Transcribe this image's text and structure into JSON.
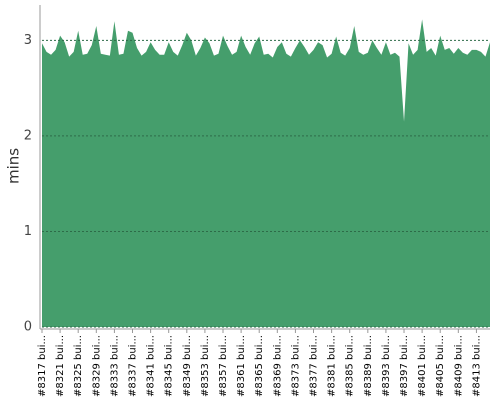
{
  "chart_data": {
    "type": "area",
    "y_label": "mins",
    "color": "#459e6c",
    "ylim": [
      0,
      3.37
    ],
    "yticks": [
      0,
      1,
      2,
      3
    ],
    "grid": true,
    "categories": [
      "#8317 bui...",
      null,
      null,
      null,
      "#8321 bui...",
      null,
      null,
      null,
      "#8325 bui...",
      null,
      null,
      null,
      "#8329 bui...",
      null,
      null,
      null,
      "#8333 bui...",
      null,
      null,
      null,
      "#8337 bui...",
      null,
      null,
      null,
      "#8341 bui...",
      null,
      null,
      null,
      "#8345 bui...",
      null,
      null,
      null,
      "#8349 bui...",
      null,
      null,
      null,
      "#8353 bui...",
      null,
      null,
      null,
      "#8357 bui...",
      null,
      null,
      null,
      "#8361 bui...",
      null,
      null,
      null,
      "#8365 bui...",
      null,
      null,
      null,
      "#8369 bui...",
      null,
      null,
      null,
      "#8373 bui...",
      null,
      null,
      null,
      "#8377 bui...",
      null,
      null,
      null,
      "#8381 bui...",
      null,
      null,
      null,
      "#8385 bui...",
      null,
      null,
      null,
      "#8389 bui...",
      null,
      null,
      null,
      "#8393 bui...",
      null,
      null,
      null,
      "#8397 bui...",
      null,
      null,
      null,
      "#8401 bui...",
      null,
      null,
      null,
      "#8405 bui...",
      null,
      null,
      null,
      "#8409 bui...",
      null,
      null,
      null,
      "#8413 bui...",
      null,
      null,
      null
    ],
    "values": [
      2.97,
      2.88,
      2.85,
      2.9,
      3.05,
      2.98,
      2.83,
      2.88,
      3.1,
      2.85,
      2.86,
      2.95,
      3.15,
      2.86,
      2.85,
      2.84,
      3.2,
      2.85,
      2.86,
      3.1,
      3.08,
      2.92,
      2.84,
      2.88,
      2.98,
      2.9,
      2.85,
      2.85,
      2.98,
      2.88,
      2.84,
      2.95,
      3.08,
      3.0,
      2.84,
      2.92,
      3.03,
      2.97,
      2.84,
      2.86,
      3.05,
      2.94,
      2.85,
      2.88,
      3.05,
      2.93,
      2.85,
      2.97,
      3.04,
      2.85,
      2.86,
      2.82,
      2.93,
      2.98,
      2.86,
      2.83,
      2.92,
      3.0,
      2.93,
      2.85,
      2.9,
      2.98,
      2.95,
      2.82,
      2.86,
      3.04,
      2.87,
      2.84,
      2.92,
      3.15,
      2.88,
      2.85,
      2.87,
      3.0,
      2.92,
      2.85,
      2.98,
      2.85,
      2.87,
      2.83,
      2.15,
      2.97,
      2.85,
      2.9,
      3.22,
      2.88,
      2.92,
      2.84,
      3.05,
      2.9,
      2.92,
      2.86,
      2.92,
      2.87,
      2.85,
      2.9,
      2.9,
      2.88,
      2.83,
      2.98
    ]
  }
}
